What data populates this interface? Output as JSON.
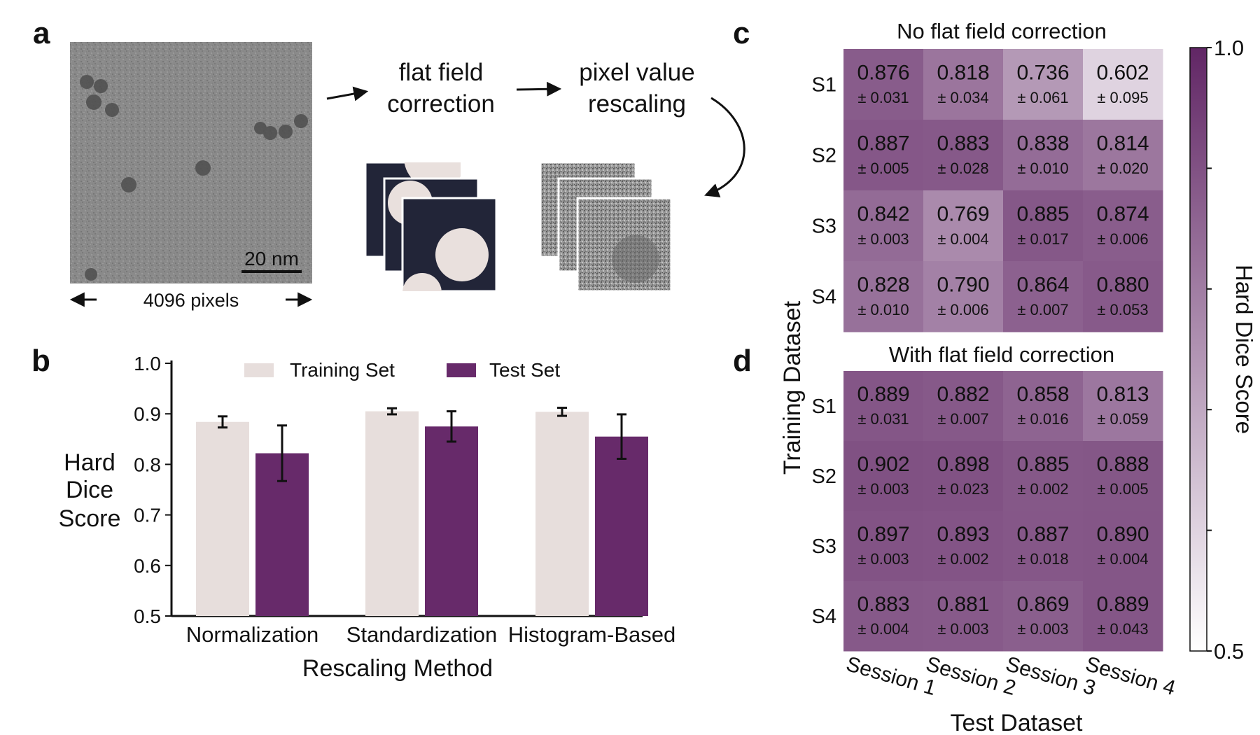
{
  "panel_labels": {
    "a": "a",
    "b": "b",
    "c": "c",
    "d": "d"
  },
  "panel_a": {
    "scale_bar": "20 nm",
    "width_label": "4096 pixels",
    "step1": [
      "flat field",
      "correction"
    ],
    "step2": [
      "pixel value",
      "rescaling"
    ]
  },
  "colors": {
    "training": "#e7dedc",
    "test": "#672a6a",
    "mask_dark": "#222538",
    "mask_light": "#e9e0dd",
    "cmap_low": "#ffffff",
    "cmap_high": "#612665"
  },
  "chart_data": [
    {
      "id": "b",
      "type": "bar",
      "categories": [
        "Normalization",
        "Standardization",
        "Histogram-Based"
      ],
      "series": [
        {
          "name": "Training Set",
          "values": [
            0.884,
            0.905,
            0.904
          ],
          "errors": [
            0.011,
            0.006,
            0.008
          ]
        },
        {
          "name": "Test Set",
          "values": [
            0.822,
            0.875,
            0.855
          ],
          "errors": [
            0.055,
            0.03,
            0.044
          ]
        }
      ],
      "xlabel": "Rescaling Method",
      "ylabel": [
        "Hard",
        "Dice",
        "Score"
      ],
      "ylim": [
        0.5,
        1.0
      ],
      "yticks": [
        "0.5",
        "0.6",
        "0.7",
        "0.8",
        "0.9",
        "1.0"
      ],
      "legend_position": "top"
    },
    {
      "id": "c",
      "type": "heatmap",
      "title": "No flat field correction",
      "rows": [
        "S1",
        "S2",
        "S3",
        "S4"
      ],
      "values": [
        [
          "0.876",
          "0.818",
          "0.736",
          "0.602"
        ],
        [
          "0.887",
          "0.883",
          "0.838",
          "0.814"
        ],
        [
          "0.842",
          "0.769",
          "0.885",
          "0.874"
        ],
        [
          "0.828",
          "0.790",
          "0.864",
          "0.880"
        ]
      ],
      "errors": [
        [
          "± 0.031",
          "± 0.034",
          "± 0.061",
          "± 0.095"
        ],
        [
          "± 0.005",
          "± 0.028",
          "± 0.010",
          "± 0.020"
        ],
        [
          "± 0.003",
          "± 0.004",
          "± 0.017",
          "± 0.006"
        ],
        [
          "± 0.010",
          "± 0.006",
          "± 0.007",
          "± 0.053"
        ]
      ]
    },
    {
      "id": "d",
      "type": "heatmap",
      "title": "With flat field correction",
      "rows": [
        "S1",
        "S2",
        "S3",
        "S4"
      ],
      "columns": [
        "Session 1",
        "Session 2",
        "Session 3",
        "Session 4"
      ],
      "values": [
        [
          "0.889",
          "0.882",
          "0.858",
          "0.813"
        ],
        [
          "0.902",
          "0.898",
          "0.885",
          "0.888"
        ],
        [
          "0.897",
          "0.893",
          "0.887",
          "0.890"
        ],
        [
          "0.883",
          "0.881",
          "0.869",
          "0.889"
        ]
      ],
      "errors": [
        [
          "± 0.031",
          "± 0.007",
          "± 0.016",
          "± 0.059"
        ],
        [
          "± 0.003",
          "± 0.023",
          "± 0.002",
          "± 0.005"
        ],
        [
          "± 0.003",
          "± 0.002",
          "± 0.018",
          "± 0.004"
        ],
        [
          "± 0.004",
          "± 0.003",
          "± 0.003",
          "± 0.043"
        ]
      ],
      "xlabel": "Test Dataset"
    }
  ],
  "heatmap_shared": {
    "ylabel": "Training Dataset",
    "colorbar_label": "Hard Dice Score",
    "colorbar_min": "0.5",
    "colorbar_max": "1.0",
    "vmin": 0.5,
    "vmax": 1.0
  }
}
